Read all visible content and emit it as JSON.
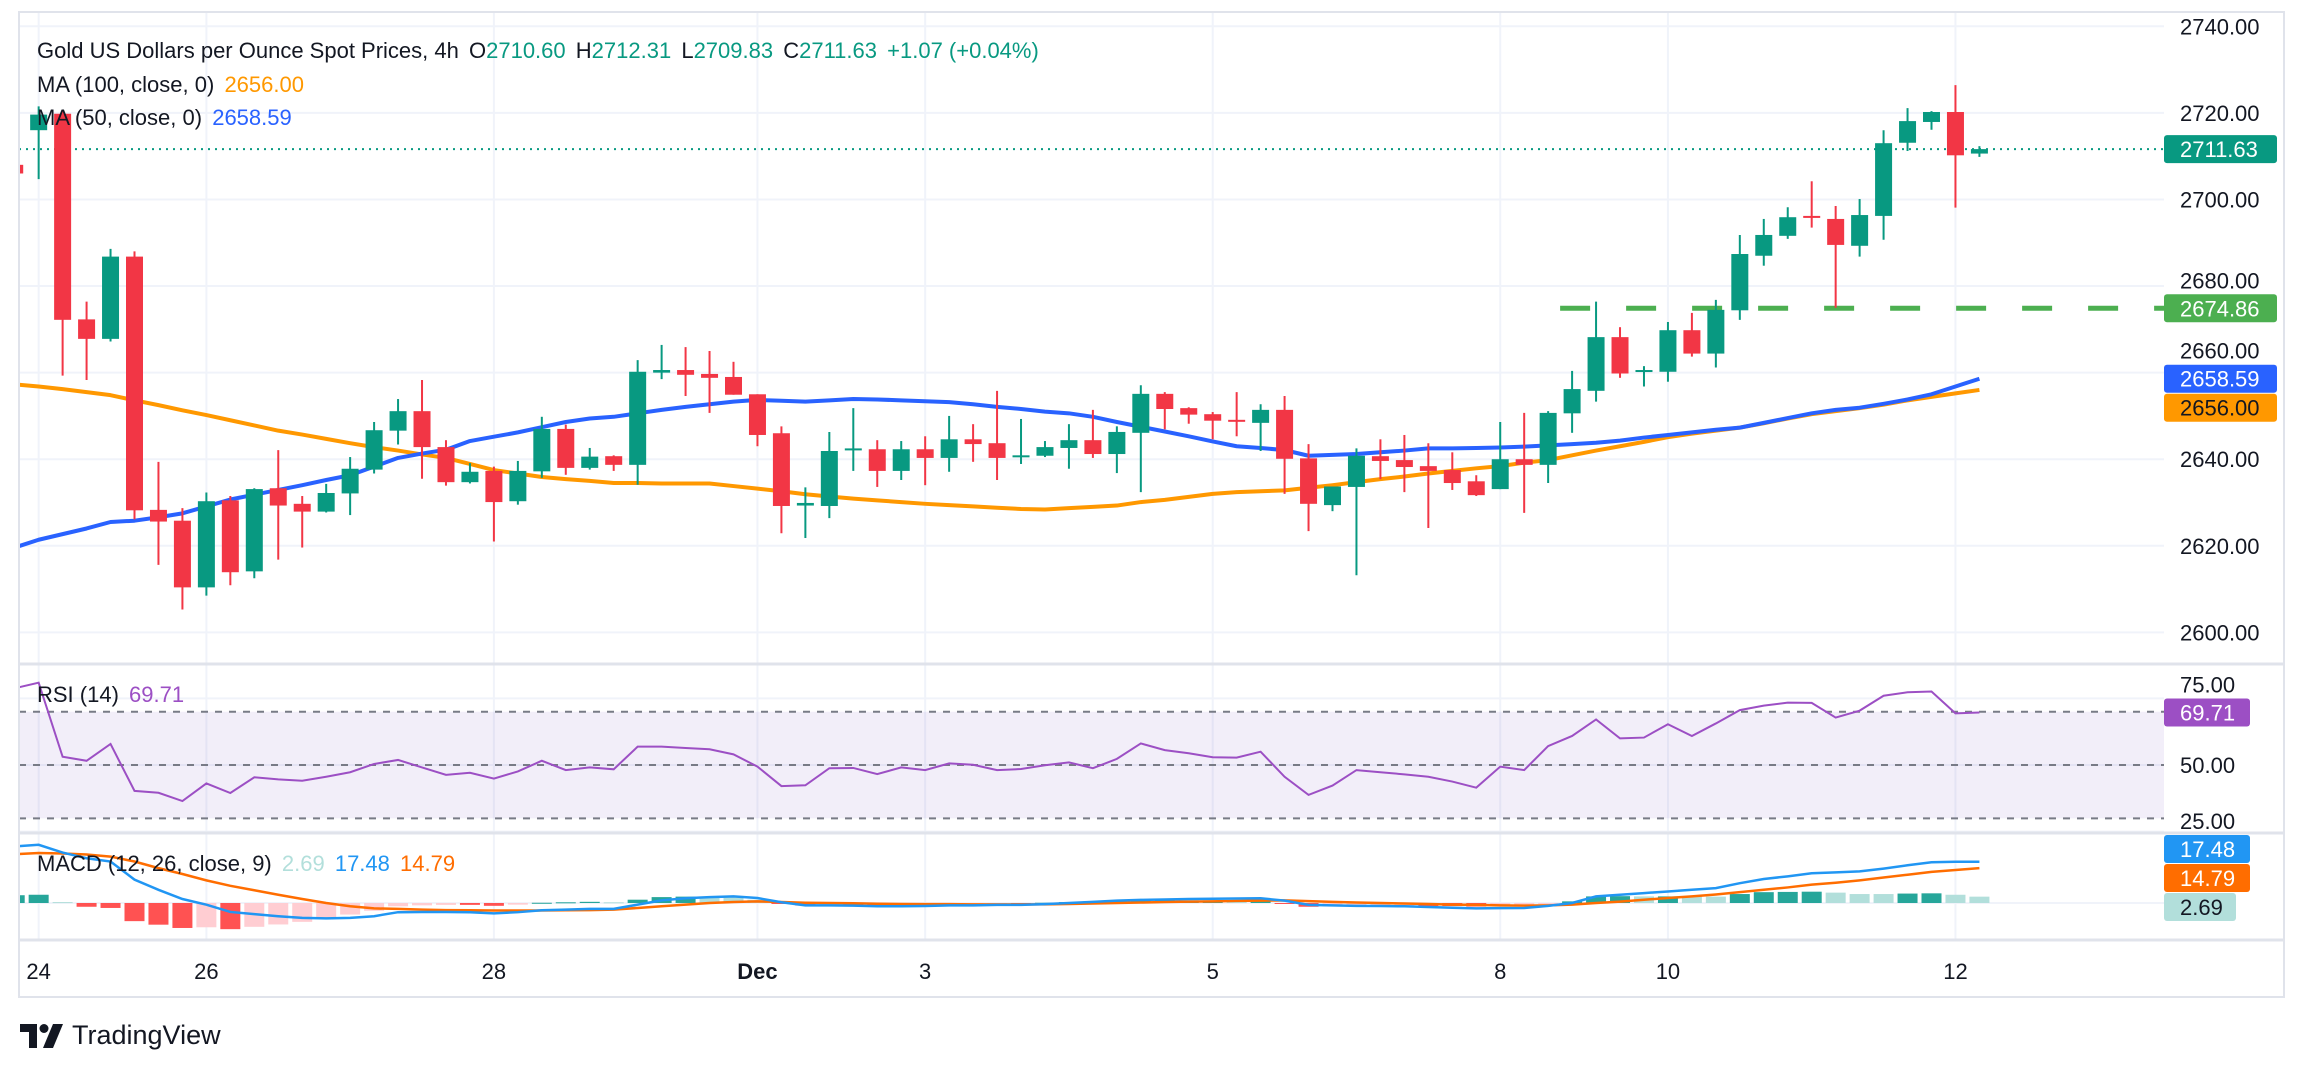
{
  "header": {
    "title": "Gold US Dollars per Ounce Spot Prices, 4h",
    "o_label": "O",
    "o_value": "2710.60",
    "h_label": "H",
    "h_value": "2712.31",
    "l_label": "L",
    "l_value": "2709.83",
    "c_label": "C",
    "c_value": "2711.63",
    "change": "+1.07 (+0.04%)"
  },
  "indicators": {
    "ma100": {
      "label": "MA (100, close, 0)",
      "value": "2656.00",
      "color": "#FF9800"
    },
    "ma50": {
      "label": "MA (50, close, 0)",
      "value": "2658.59",
      "color": "#2962FF"
    },
    "rsi": {
      "label": "RSI (14)",
      "value": "69.71",
      "color": "#9C4FC4"
    },
    "macd": {
      "label": "MACD (12, 26, close, 9)",
      "hist_value": "2.69",
      "macd_value": "17.48",
      "signal_value": "14.79",
      "hist_color": "#B2DFDB",
      "macd_color": "#2196F3",
      "signal_color": "#FF6D00"
    }
  },
  "price_axis": {
    "ticks": [
      "2740.00",
      "2720.00",
      "2700.00",
      "2680.00",
      "2660.00",
      "2640.00",
      "2620.00",
      "2600.00"
    ]
  },
  "rsi_axis": {
    "ticks": [
      "75.00",
      "50.00",
      "25.00"
    ]
  },
  "price_labels": {
    "last": {
      "text": "2711.63",
      "color": "#089981"
    },
    "support": {
      "text": "2674.86",
      "color": "#4CAF50"
    },
    "ma50": {
      "text": "2658.59",
      "color": "#2962FF"
    },
    "ma100": {
      "text": "2656.00",
      "color": "#FF9800"
    }
  },
  "time_axis": {
    "labels": [
      {
        "label": "24",
        "candle_index": 1
      },
      {
        "label": "26",
        "candle_index": 8
      },
      {
        "label": "28",
        "candle_index": 20
      },
      {
        "label": "Dec",
        "candle_index": 31,
        "bold": true
      },
      {
        "label": "3",
        "candle_index": 38
      },
      {
        "label": "5",
        "candle_index": 50
      },
      {
        "label": "8",
        "candle_index": 62
      },
      {
        "label": "10",
        "candle_index": 69
      },
      {
        "label": "12",
        "candle_index": 81
      }
    ]
  },
  "branding": {
    "name": "TradingView"
  },
  "colors": {
    "up": "#089981",
    "down": "#F23645",
    "grid": "#F0F3FA",
    "border": "#E0E3EB"
  },
  "chart_data": {
    "type": "candlestick",
    "title": "Gold US Dollars per Ounce Spot Prices, 4h",
    "ylim": [
      2592.7,
      2743.3
    ],
    "grid": true,
    "last_price": 2711.63,
    "support_level": 2674.86,
    "support_from_index": 64.5,
    "ohlc": [
      [
        2708,
        2708.5,
        2705.5,
        2706
      ],
      [
        2716,
        2721.5,
        2704.7,
        2719.6
      ],
      [
        2719.8,
        2720.5,
        2659.3,
        2672.2
      ],
      [
        2672.3,
        2676.4,
        2658.3,
        2667.8
      ],
      [
        2667.8,
        2688.6,
        2667.2,
        2686.8
      ],
      [
        2686.8,
        2688,
        2626.1,
        2628.2
      ],
      [
        2628.3,
        2639.4,
        2615.6,
        2625.6
      ],
      [
        2625.8,
        2628.7,
        2605.3,
        2610.4
      ],
      [
        2610.4,
        2632.3,
        2608.5,
        2630.3
      ],
      [
        2630.5,
        2631.5,
        2610.9,
        2613.9
      ],
      [
        2614.1,
        2633.3,
        2612.5,
        2633.1
      ],
      [
        2633.3,
        2642.1,
        2616.8,
        2629.3
      ],
      [
        2629.7,
        2631.5,
        2619.6,
        2627.9
      ],
      [
        2627.9,
        2634.3,
        2627.7,
        2632.2
      ],
      [
        2632.1,
        2640.5,
        2627.1,
        2637.8
      ],
      [
        2637.6,
        2648.6,
        2636.7,
        2646.7
      ],
      [
        2646.6,
        2653.9,
        2643.4,
        2651.1
      ],
      [
        2651.1,
        2658.3,
        2635.5,
        2642.8
      ],
      [
        2642.8,
        2644.4,
        2633.9,
        2634.7
      ],
      [
        2634.7,
        2639.1,
        2634.4,
        2637.1
      ],
      [
        2637.3,
        2638.3,
        2621.0,
        2630.1
      ],
      [
        2630.3,
        2639.6,
        2629.5,
        2637.3
      ],
      [
        2637.2,
        2649.8,
        2635.7,
        2647.0
      ],
      [
        2647.0,
        2648.0,
        2636.4,
        2638.0
      ],
      [
        2638.0,
        2642.6,
        2637.6,
        2640.6
      ],
      [
        2640.7,
        2640.9,
        2637.3,
        2638.7
      ],
      [
        2638.7,
        2662.9,
        2634.1,
        2660.2
      ],
      [
        2660.0,
        2666.4,
        2658.5,
        2660.6
      ],
      [
        2660.6,
        2665.9,
        2654.6,
        2659.5
      ],
      [
        2659.7,
        2665.0,
        2650.7,
        2658.8
      ],
      [
        2659.0,
        2662.5,
        2654.9,
        2654.9
      ],
      [
        2655.0,
        2655.0,
        2643.0,
        2645.6
      ],
      [
        2646.0,
        2647.6,
        2622.9,
        2629.2
      ],
      [
        2629.3,
        2633.5,
        2621.8,
        2629.9
      ],
      [
        2629.2,
        2646.3,
        2626.4,
        2641.9
      ],
      [
        2642.3,
        2651.8,
        2637.3,
        2642.5
      ],
      [
        2642.3,
        2644.4,
        2633.6,
        2637.3
      ],
      [
        2637.3,
        2644.2,
        2635.2,
        2642.3
      ],
      [
        2642.3,
        2645.3,
        2634.0,
        2640.3
      ],
      [
        2640.3,
        2650.0,
        2637.1,
        2644.6
      ],
      [
        2644.6,
        2648.1,
        2639.4,
        2643.5
      ],
      [
        2643.7,
        2655.8,
        2635.2,
        2640.3
      ],
      [
        2640.5,
        2649.3,
        2638.9,
        2640.9
      ],
      [
        2640.8,
        2644.2,
        2640.5,
        2642.8
      ],
      [
        2642.6,
        2648.1,
        2637.8,
        2644.4
      ],
      [
        2644.4,
        2651.4,
        2640.3,
        2641.2
      ],
      [
        2641.2,
        2647.6,
        2636.8,
        2646.3
      ],
      [
        2646.1,
        2657.1,
        2632.4,
        2655.1
      ],
      [
        2655.1,
        2655.5,
        2646.9,
        2651.6
      ],
      [
        2651.8,
        2652.0,
        2648.2,
        2650.3
      ],
      [
        2650.4,
        2650.9,
        2644.6,
        2648.9
      ],
      [
        2649.1,
        2655.5,
        2645.3,
        2648.8
      ],
      [
        2648.4,
        2652.7,
        2641.9,
        2651.4
      ],
      [
        2651.4,
        2654.6,
        2632.0,
        2640.1
      ],
      [
        2640.2,
        2643.5,
        2623.4,
        2629.7
      ],
      [
        2629.4,
        2633.7,
        2628.0,
        2633.7
      ],
      [
        2633.6,
        2642.5,
        2613.2,
        2640.8
      ],
      [
        2640.7,
        2644.6,
        2635.4,
        2639.6
      ],
      [
        2639.8,
        2645.6,
        2632.4,
        2638.2
      ],
      [
        2638.4,
        2643.7,
        2624.1,
        2637.3
      ],
      [
        2637.5,
        2641.6,
        2632.9,
        2634.5
      ],
      [
        2634.9,
        2636.3,
        2631.5,
        2631.7
      ],
      [
        2633.1,
        2648.6,
        2633.1,
        2640.0
      ],
      [
        2640.0,
        2650.7,
        2627.6,
        2638.7
      ],
      [
        2638.7,
        2651.1,
        2634.5,
        2650.7
      ],
      [
        2650.6,
        2660.4,
        2646.1,
        2656.2
      ],
      [
        2655.8,
        2676.4,
        2653.3,
        2668.2
      ],
      [
        2668.2,
        2670.5,
        2658.8,
        2659.8
      ],
      [
        2660.3,
        2661.5,
        2656.8,
        2660.6
      ],
      [
        2660.2,
        2671.7,
        2657.9,
        2669.8
      ],
      [
        2669.8,
        2673.8,
        2663.7,
        2664.4
      ],
      [
        2664.4,
        2676.8,
        2661.2,
        2674.5
      ],
      [
        2674.4,
        2691.8,
        2672.2,
        2687.4
      ],
      [
        2687.0,
        2695.5,
        2684.7,
        2691.8
      ],
      [
        2691.6,
        2698.2,
        2690.9,
        2695.9
      ],
      [
        2696.2,
        2704.2,
        2693.5,
        2695.8
      ],
      [
        2695.5,
        2698.5,
        2675.0,
        2689.5
      ],
      [
        2689.3,
        2700.1,
        2686.8,
        2696.4
      ],
      [
        2696.2,
        2716.0,
        2690.7,
        2713.0
      ],
      [
        2713.1,
        2721.1,
        2711.2,
        2718.1
      ],
      [
        2717.9,
        2720.4,
        2716.1,
        2720.2
      ],
      [
        2720.2,
        2726.4,
        2698.1,
        2710.2
      ],
      [
        2710.6,
        2712.31,
        2709.83,
        2711.63
      ]
    ],
    "ma50": [
      2619.6,
      2621.4,
      2622.7,
      2624,
      2625.5,
      2625.8,
      2626.6,
      2627.5,
      2629.1,
      2630.7,
      2631.8,
      2632.9,
      2634,
      2635.2,
      2636.3,
      2638.3,
      2640.3,
      2641.3,
      2642.2,
      2644.2,
      2645.2,
      2646.2,
      2647.4,
      2648.6,
      2649.4,
      2649.8,
      2650.6,
      2651.4,
      2652.1,
      2652.7,
      2653.3,
      2653.7,
      2653.5,
      2653.3,
      2653.6,
      2653.9,
      2653.8,
      2653.6,
      2653.4,
      2653.2,
      2652.7,
      2652.1,
      2651.6,
      2651,
      2650.6,
      2649.8,
      2648.6,
      2647.5,
      2646.4,
      2645.3,
      2644.1,
      2643,
      2642.6,
      2642.1,
      2640.8,
      2641,
      2641.2,
      2641.6,
      2642,
      2642.5,
      2642.5,
      2642.6,
      2642.7,
      2642.9,
      2643.2,
      2643.5,
      2643.8,
      2644.3,
      2645,
      2645.6,
      2646.2,
      2646.8,
      2647.3,
      2648.4,
      2649.5,
      2650.6,
      2651.4,
      2651.9,
      2652.8,
      2653.8,
      2655,
      2656.8,
      2658.59
    ],
    "ma100": [
      2657.3,
      2656.8,
      2656.2,
      2655.5,
      2654.8,
      2653.6,
      2652.5,
      2651.3,
      2650.2,
      2649,
      2647.8,
      2646.6,
      2645.7,
      2644.7,
      2643.7,
      2642.8,
      2642,
      2641.1,
      2640.3,
      2638.9,
      2637.5,
      2636.7,
      2635.9,
      2635.4,
      2635,
      2634.5,
      2634.5,
      2634.4,
      2634.4,
      2634.4,
      2633.8,
      2633.2,
      2632.6,
      2631.9,
      2631.4,
      2630.9,
      2630.5,
      2630.1,
      2629.7,
      2629.4,
      2629.1,
      2628.8,
      2628.5,
      2628.4,
      2628.7,
      2629,
      2629.3,
      2630.1,
      2630.6,
      2631.3,
      2632,
      2632.4,
      2632.6,
      2632.8,
      2633.4,
      2634,
      2634.7,
      2635.4,
      2636,
      2636.7,
      2637.3,
      2637.9,
      2638.4,
      2639.2,
      2639.8,
      2640.9,
      2642,
      2643,
      2644,
      2645.1,
      2645.9,
      2646.6,
      2647.3,
      2648.3,
      2649.4,
      2650.4,
      2651.1,
      2651.8,
      2652.6,
      2653.6,
      2654.4,
      2655.2,
      2656.0
    ],
    "rsi": {
      "bands": [
        70,
        50,
        30
      ],
      "ylim": [
        24.5,
        87.9
      ],
      "values": [
        78.8,
        80.9,
        53.1,
        51.6,
        57.9,
        40.3,
        39.6,
        36.5,
        43.1,
        39.5,
        45.4,
        44.6,
        44.1,
        45.6,
        47.3,
        50.4,
        51.9,
        49.1,
        46.3,
        47.1,
        44.9,
        47.6,
        51.6,
        48.1,
        49.1,
        48.4,
        56.9,
        56.9,
        56.4,
        55.9,
        54,
        49.4,
        42.1,
        42.4,
        48.8,
        48.9,
        46.6,
        49.1,
        48.1,
        50.6,
        50.1,
        48.1,
        48.5,
        49.9,
        51,
        48.8,
        52.3,
        58.1,
        55.6,
        54.4,
        52.9,
        52.8,
        55,
        45.6,
        38.8,
        42.3,
        48.1,
        47.3,
        46.5,
        45.6,
        43.8,
        41.5,
        49.4,
        48.1,
        57.1,
        60.9,
        67.1,
        60,
        60.3,
        65.3,
        60.9,
        65.6,
        70.6,
        72.3,
        73.4,
        73.3,
        67.8,
        70.4,
        76,
        77.3,
        77.6,
        69.4,
        69.71
      ]
    },
    "macd": {
      "ylim": [
        -15.7,
        29.7
      ],
      "macd": [
        24,
        24.7,
        21.4,
        19,
        17.6,
        9.9,
        5.6,
        1.7,
        -0.7,
        -3.8,
        -4.7,
        -5.6,
        -6.3,
        -6.5,
        -6.3,
        -5.6,
        -3.9,
        -3.8,
        -3.8,
        -3.9,
        -4.4,
        -3.9,
        -3.1,
        -2.8,
        -2.5,
        -2.5,
        -0.7,
        1.1,
        2,
        2.5,
        2.8,
        2.1,
        0.3,
        -1,
        -1,
        -1.1,
        -1.4,
        -1.4,
        -1.3,
        -1,
        -1,
        -0.8,
        -0.8,
        -0.5,
        0,
        0.5,
        1,
        1.3,
        1.5,
        1.7,
        1.8,
        1.9,
        2,
        1,
        -0.8,
        -1,
        -1.2,
        -1.3,
        -1.4,
        -1.7,
        -2,
        -2.3,
        -2.2,
        -2.1,
        -1.2,
        0,
        2.8,
        3.5,
        4.2,
        4.9,
        5.6,
        6.3,
        8.4,
        10.2,
        11.3,
        12.6,
        13,
        13.4,
        14.6,
        16,
        17.3,
        17.5,
        17.48
      ],
      "signal": [
        20.7,
        21.2,
        21,
        20.6,
        19.7,
        17.6,
        14.8,
        12.3,
        9.6,
        7.3,
        5.4,
        3.5,
        1.7,
        0,
        -1.4,
        -2.3,
        -2.5,
        -2.8,
        -3,
        -3.1,
        -3.2,
        -3.2,
        -3.2,
        -3.1,
        -3,
        -2.8,
        -2.1,
        -1.4,
        -0.7,
        0,
        0.4,
        0.7,
        0.4,
        0.1,
        0,
        -0.1,
        -0.3,
        -0.4,
        -0.5,
        -0.5,
        -0.6,
        -0.6,
        -0.6,
        -0.6,
        -0.4,
        -0.2,
        0,
        0.2,
        0.4,
        0.6,
        0.7,
        0.9,
        1,
        1.1,
        0.8,
        0.5,
        0.2,
        0,
        -0.2,
        -0.4,
        -0.7,
        -0.8,
        -1,
        -1.1,
        -1,
        -0.7,
        0,
        0.6,
        1.4,
        2.1,
        2.8,
        3.6,
        4.6,
        5.6,
        6.6,
        7.8,
        8.6,
        9.6,
        10.8,
        12,
        13.2,
        14,
        14.79
      ]
    }
  }
}
